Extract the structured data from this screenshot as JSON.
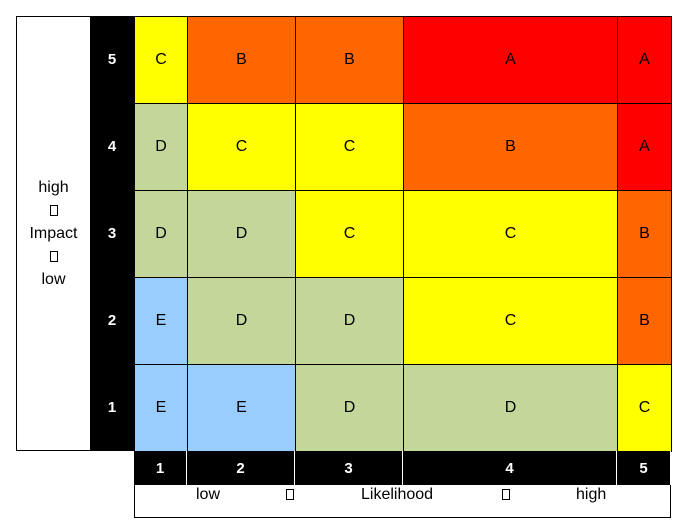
{
  "matrix": {
    "y_axis": {
      "lines": [
        "high",
        "□",
        "Impact",
        "□",
        "low"
      ]
    },
    "x_axis": {
      "parts": [
        "low",
        "□",
        "Likelihood",
        "□",
        "high"
      ]
    },
    "impact_levels": [
      "5",
      "4",
      "3",
      "2",
      "1"
    ],
    "likelihood_levels": [
      "1",
      "2",
      "3",
      "4",
      "5"
    ],
    "grid": [
      [
        "C",
        "B",
        "B",
        "A",
        "A"
      ],
      [
        "D",
        "C",
        "C",
        "B",
        "A"
      ],
      [
        "D",
        "D",
        "C",
        "C",
        "B"
      ],
      [
        "E",
        "D",
        "D",
        "C",
        "B"
      ],
      [
        "E",
        "E",
        "D",
        "D",
        "C"
      ]
    ],
    "grade_colors": {
      "A": "#ff0000",
      "B": "#ff6600",
      "C": "#ffff00",
      "D": "#c4d79b",
      "E": "#99ccff"
    },
    "header_color": "#000000",
    "header_text_color": "#ffffff"
  }
}
